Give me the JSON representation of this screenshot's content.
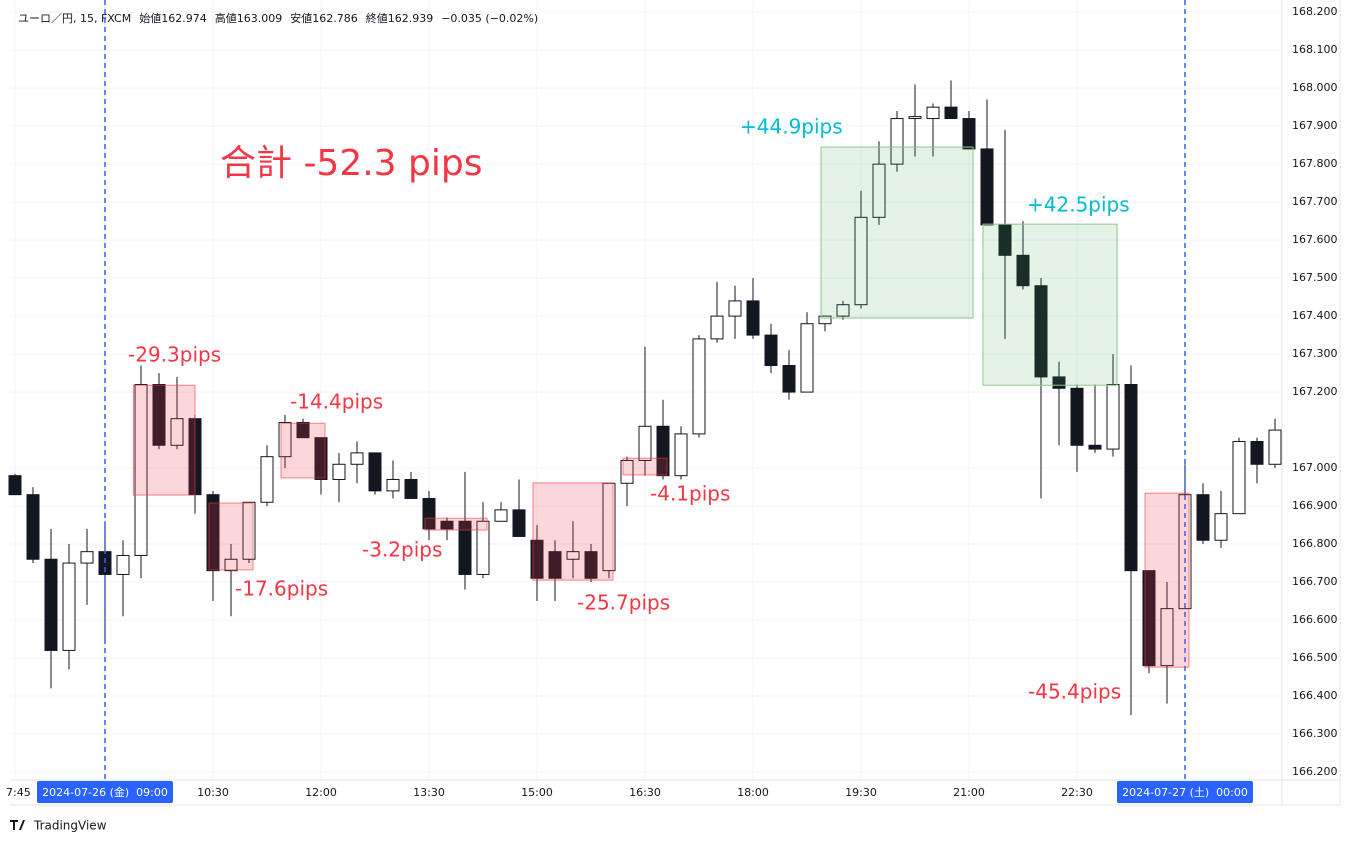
{
  "header": {
    "symbol": "ユーロ／円, 15, FXCM",
    "open": "始値162.974",
    "high": "高値163.009",
    "low": "安値162.786",
    "close": "終値162.939",
    "change": "−0.035 (−0.02%)"
  },
  "logo": "TradingView",
  "chart_data": {
    "type": "candlestick",
    "title": "合計 -52.3 pips",
    "categories": [
      "7:45",
      null,
      null,
      null,
      null,
      "2024-07-26 (金)  09:00",
      null,
      null,
      null,
      null,
      null,
      "10:30",
      null,
      null,
      null,
      null,
      null,
      "12:00",
      null,
      null,
      null,
      null,
      null,
      "13:30",
      null,
      null,
      null,
      null,
      null,
      "15:00",
      null,
      null,
      null,
      null,
      null,
      "16:30",
      null,
      null,
      null,
      null,
      null,
      "18:00",
      null,
      null,
      null,
      null,
      null,
      "19:30",
      null,
      null,
      null,
      null,
      null,
      "21:00",
      null,
      null,
      null,
      null,
      null,
      "22:30",
      null,
      null,
      null,
      null,
      null,
      "2024-07-27 (土)  00:00",
      null,
      null,
      null,
      null,
      null
    ],
    "open": [
      166.98,
      166.93,
      166.76,
      166.52,
      166.75,
      166.78,
      166.72,
      166.77,
      167.22,
      167.06,
      167.13,
      166.93,
      166.73,
      166.76,
      166.91,
      167.03,
      167.12,
      167.08,
      166.97,
      167.01,
      167.04,
      166.94,
      166.97,
      166.92,
      166.86,
      166.86,
      166.72,
      166.86,
      166.89,
      166.81,
      166.78,
      166.76,
      166.78,
      166.73,
      166.96,
      167.02,
      167.11,
      166.98,
      167.09,
      167.34,
      167.4,
      167.44,
      167.35,
      167.27,
      167.2,
      167.38,
      167.4,
      167.43,
      167.66,
      167.8,
      167.92,
      167.92,
      167.95,
      167.92,
      167.84,
      167.64,
      167.56,
      167.48,
      167.24,
      167.21,
      167.06,
      167.05,
      167.22,
      166.73,
      166.48,
      166.63,
      166.93,
      166.81,
      166.88,
      167.07,
      167.01
    ],
    "high": [
      166.985,
      166.95,
      166.84,
      166.8,
      166.84,
      166.86,
      166.81,
      167.27,
      167.25,
      167.24,
      167.14,
      166.94,
      166.8,
      166.91,
      167.06,
      167.14,
      167.13,
      167.08,
      167.04,
      167.07,
      167.04,
      167.02,
      166.99,
      166.94,
      166.87,
      166.99,
      166.91,
      166.91,
      166.97,
      166.85,
      166.81,
      166.86,
      166.8,
      166.96,
      167.03,
      167.32,
      167.18,
      167.11,
      167.35,
      167.49,
      167.48,
      167.5,
      167.38,
      167.31,
      167.41,
      167.4,
      167.44,
      167.73,
      167.86,
      167.94,
      168.01,
      167.96,
      168.02,
      167.94,
      167.97,
      167.89,
      167.65,
      167.5,
      167.28,
      167.22,
      167.22,
      167.3,
      167.27,
      166.73,
      166.7,
      167.01,
      166.96,
      166.94,
      167.08,
      167.08,
      167.13
    ],
    "low": [
      166.93,
      166.75,
      166.42,
      166.47,
      166.64,
      166.55,
      166.61,
      166.71,
      167.05,
      167.05,
      166.88,
      166.65,
      166.61,
      166.75,
      166.9,
      167.0,
      167.08,
      166.93,
      166.91,
      166.96,
      166.93,
      166.92,
      166.92,
      166.81,
      166.81,
      166.68,
      166.71,
      166.86,
      166.82,
      166.65,
      166.65,
      166.71,
      166.7,
      166.71,
      166.9,
      166.98,
      166.97,
      166.97,
      167.08,
      167.33,
      167.34,
      167.34,
      167.25,
      167.18,
      167.2,
      167.36,
      167.39,
      167.42,
      167.64,
      167.78,
      167.82,
      167.82,
      167.92,
      167.84,
      167.64,
      167.34,
      167.47,
      166.92,
      167.06,
      166.99,
      167.04,
      167.03,
      166.35,
      166.46,
      166.38,
      166.63,
      166.8,
      166.79,
      166.88,
      166.96,
      167.0
    ],
    "close": [
      166.93,
      166.76,
      166.52,
      166.75,
      166.78,
      166.72,
      166.77,
      167.22,
      167.06,
      167.13,
      166.93,
      166.73,
      166.76,
      166.91,
      167.03,
      167.12,
      167.08,
      166.97,
      167.01,
      167.04,
      166.94,
      166.97,
      166.92,
      166.84,
      166.84,
      166.72,
      166.86,
      166.89,
      166.82,
      166.71,
      166.71,
      166.78,
      166.71,
      166.96,
      167.02,
      167.11,
      166.98,
      167.09,
      167.34,
      167.4,
      167.44,
      167.35,
      167.27,
      167.2,
      167.38,
      167.4,
      167.43,
      167.66,
      167.8,
      167.92,
      167.925,
      167.95,
      167.92,
      167.84,
      167.64,
      167.56,
      167.48,
      167.24,
      167.21,
      167.06,
      167.05,
      167.22,
      166.73,
      166.48,
      166.63,
      166.93,
      166.81,
      166.88,
      167.07,
      167.01,
      167.1
    ],
    "up_color": "#ffffff",
    "down_color": "#131722",
    "ylim": [
      166.179,
      168.232
    ],
    "yticks": [
      {
        "value": 168.2,
        "label": "168.200"
      },
      {
        "value": 168.1,
        "label": "168.100"
      },
      {
        "value": 168.0,
        "label": "168.000"
      },
      {
        "value": 167.9,
        "label": "167.900"
      },
      {
        "value": 167.8,
        "label": "167.800"
      },
      {
        "value": 167.7,
        "label": "167.700"
      },
      {
        "value": 167.6,
        "label": "167.600"
      },
      {
        "value": 167.5,
        "label": "167.500"
      },
      {
        "value": 167.4,
        "label": "167.400"
      },
      {
        "value": 167.3,
        "label": "167.300"
      },
      {
        "value": 167.2,
        "label": "167.200"
      },
      {
        "value": 167.0,
        "label": "167.000"
      },
      {
        "value": 166.9,
        "label": "166.900"
      },
      {
        "value": 166.8,
        "label": "166.800"
      },
      {
        "value": 166.7,
        "label": "166.700"
      },
      {
        "value": 166.6,
        "label": "166.600"
      },
      {
        "value": 166.5,
        "label": "166.500"
      },
      {
        "value": 166.4,
        "label": "166.400"
      },
      {
        "value": 166.3,
        "label": "166.300"
      },
      {
        "value": 166.2,
        "label": "166.200"
      }
    ],
    "grid": true,
    "trades": [
      {
        "label": "-29.3pips",
        "x0": 6.8,
        "x1": 10,
        "top": 167.218,
        "bottom": 166.929,
        "color": "#f23645"
      },
      {
        "label": "-17.6pips",
        "x0": 11,
        "x1": 13,
        "top": 166.908,
        "bottom": 166.732,
        "color": "#f23645"
      },
      {
        "label": "-14.4pips",
        "x0": 15,
        "x1": 17,
        "top": 167.118,
        "bottom": 166.974,
        "color": "#f23645"
      },
      {
        "label": "-3.2pips",
        "x0": 23,
        "x1": 26,
        "top": 166.868,
        "bottom": 166.837,
        "color": "#f23645"
      },
      {
        "label": "-25.7pips",
        "x0": 29,
        "x1": 33,
        "top": 166.961,
        "bottom": 166.705,
        "color": "#f23645"
      },
      {
        "label": "-4.1pips",
        "x0": 34,
        "x1": 36,
        "top": 167.026,
        "bottom": 166.982,
        "color": "#f23645"
      },
      {
        "label": "+44.9pips",
        "x0": 45,
        "x1": 53,
        "top": 167.845,
        "bottom": 167.395,
        "color": "#00bcd4"
      },
      {
        "label": "+42.5pips",
        "x0": 54,
        "x1": 61,
        "top": 167.642,
        "bottom": 167.218,
        "color": "#00bcd4"
      },
      {
        "label": "-45.4pips",
        "x0": 63,
        "x1": 65,
        "top": 166.934,
        "bottom": 166.476,
        "color": "#f23645"
      }
    ]
  }
}
